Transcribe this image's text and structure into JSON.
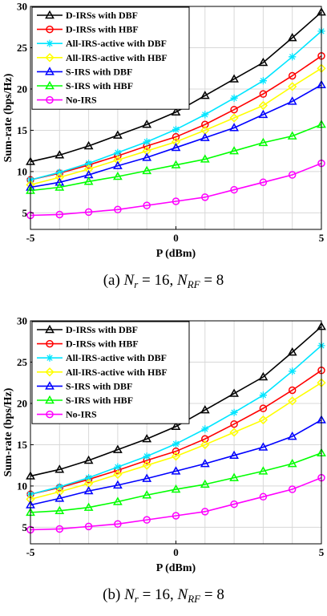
{
  "chart_data": [
    {
      "type": "line",
      "caption": "(a) N_r = 16, N_RF = 8",
      "xlabel": "P (dBm)",
      "ylabel": "Sum-rate (bps/Hz)",
      "xlim": [
        -5,
        5
      ],
      "ylim": [
        3,
        30
      ],
      "xticks": [
        -5,
        0,
        5
      ],
      "yticks": [
        5,
        10,
        15,
        20,
        25,
        30
      ],
      "legend_position": "top-left",
      "x": [
        -5,
        -4,
        -3,
        -2,
        -1,
        0,
        1,
        2,
        3,
        4,
        5
      ],
      "series": [
        {
          "name": "D-IRSs with DBF",
          "color": "#000000",
          "marker": "triangle-up",
          "values": [
            11.2,
            12.0,
            13.1,
            14.4,
            15.7,
            17.2,
            19.2,
            21.2,
            23.2,
            26.2,
            29.3
          ]
        },
        {
          "name": "D-IRSs with HBF",
          "color": "#ff0000",
          "marker": "circle",
          "values": [
            9.0,
            9.8,
            10.8,
            11.9,
            13.1,
            14.2,
            15.7,
            17.5,
            19.4,
            21.6,
            24.0
          ]
        },
        {
          "name": "All-IRS-active with DBF",
          "color": "#00e5ff",
          "marker": "star",
          "values": [
            9.0,
            9.9,
            11.0,
            12.3,
            13.6,
            15.1,
            16.9,
            18.9,
            21.0,
            23.9,
            27.0
          ]
        },
        {
          "name": "All-IRS-active with HBF",
          "color": "#ffff00",
          "marker": "diamond",
          "values": [
            8.4,
            9.3,
            10.3,
            11.4,
            12.5,
            13.6,
            15.0,
            16.5,
            18.0,
            20.3,
            22.5
          ]
        },
        {
          "name": "S-IRS with DBF",
          "color": "#0000ff",
          "marker": "triangle-up",
          "values": [
            8.1,
            8.7,
            9.6,
            10.7,
            11.7,
            12.9,
            14.1,
            15.3,
            16.9,
            18.5,
            20.5
          ]
        },
        {
          "name": "S-IRS with HBF",
          "color": "#00ff00",
          "marker": "triangle-up",
          "values": [
            7.7,
            8.1,
            8.8,
            9.4,
            10.1,
            10.8,
            11.5,
            12.5,
            13.5,
            14.3,
            15.7
          ]
        },
        {
          "name": "No-IRS",
          "color": "#ff00ff",
          "marker": "circle",
          "values": [
            4.7,
            4.8,
            5.1,
            5.4,
            5.9,
            6.4,
            6.9,
            7.8,
            8.7,
            9.6,
            11.0
          ]
        }
      ]
    },
    {
      "type": "line",
      "caption": "(b) N_r = 16, N_RF = 8",
      "xlabel": "P (dBm)",
      "ylabel": "Sum-rate (bps/Hz)",
      "xlim": [
        -5,
        5
      ],
      "ylim": [
        3,
        30
      ],
      "xticks": [
        -5,
        0,
        5
      ],
      "yticks": [
        5,
        10,
        15,
        20,
        25,
        30
      ],
      "legend_position": "top-left",
      "x": [
        -5,
        -4,
        -3,
        -2,
        -1,
        0,
        1,
        2,
        3,
        4,
        5
      ],
      "series": [
        {
          "name": "D-IRSs with DBF",
          "color": "#000000",
          "marker": "triangle-up",
          "values": [
            11.2,
            12.0,
            13.1,
            14.4,
            15.7,
            17.2,
            19.2,
            21.2,
            23.2,
            26.2,
            29.3
          ]
        },
        {
          "name": "D-IRSs with HBF",
          "color": "#ff0000",
          "marker": "circle",
          "values": [
            9.0,
            9.8,
            10.8,
            11.9,
            13.1,
            14.2,
            15.7,
            17.5,
            19.4,
            21.6,
            24.0
          ]
        },
        {
          "name": "All-IRS-active with DBF",
          "color": "#00e5ff",
          "marker": "star",
          "values": [
            9.0,
            9.9,
            11.0,
            12.3,
            13.6,
            15.1,
            16.9,
            18.9,
            21.0,
            23.9,
            27.0
          ]
        },
        {
          "name": "All-IRS-active with HBF",
          "color": "#ffff00",
          "marker": "diamond",
          "values": [
            8.4,
            9.3,
            10.3,
            11.4,
            12.5,
            13.6,
            15.0,
            16.5,
            18.0,
            20.3,
            22.5
          ]
        },
        {
          "name": "S-IRS with DBF",
          "color": "#0000ff",
          "marker": "triangle-up",
          "values": [
            7.7,
            8.5,
            9.4,
            10.1,
            10.9,
            11.8,
            12.7,
            13.7,
            14.7,
            16.0,
            18.0
          ]
        },
        {
          "name": "S-IRS with HBF",
          "color": "#00ff00",
          "marker": "triangle-up",
          "values": [
            6.8,
            7.0,
            7.4,
            8.1,
            8.9,
            9.6,
            10.2,
            11.0,
            11.8,
            12.7,
            14.0
          ]
        },
        {
          "name": "No-IRS",
          "color": "#ff00ff",
          "marker": "circle",
          "values": [
            4.7,
            4.8,
            5.1,
            5.4,
            5.9,
            6.4,
            6.9,
            7.8,
            8.7,
            9.6,
            11.0
          ]
        }
      ]
    }
  ]
}
